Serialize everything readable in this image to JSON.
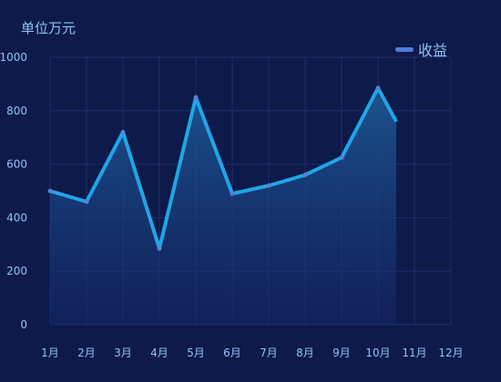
{
  "chart_data": {
    "type": "area",
    "title": "",
    "ylabel": "单位万元",
    "xlabel": "",
    "categories": [
      "1月",
      "2月",
      "3月",
      "4月",
      "5月",
      "6月",
      "7月",
      "8月",
      "9月",
      "10月",
      "11月",
      "12月"
    ],
    "series": [
      {
        "name": "收益",
        "x": [
          1,
          2,
          3,
          4,
          5,
          6,
          7,
          8,
          9,
          10,
          10.5
        ],
        "values": [
          500,
          460,
          720,
          285,
          850,
          490,
          520,
          560,
          625,
          885,
          760
        ]
      }
    ],
    "y_ticks": [
      "0",
      "200",
      "400",
      "600",
      "800",
      "1000"
    ],
    "ylim": [
      0,
      1000
    ],
    "xlim": [
      1,
      12
    ],
    "grid": true,
    "legend_position": "top-right",
    "colors": {
      "background": "#0d1a4a",
      "line": "#1fa6e6",
      "point": "#5b7ed8",
      "area_top": "#1d5a96",
      "area_bottom": "#15286a",
      "grid": "#1e2d6b",
      "axis_text": "#8fc3f2",
      "legend_swatch": "#4f7de0"
    }
  }
}
